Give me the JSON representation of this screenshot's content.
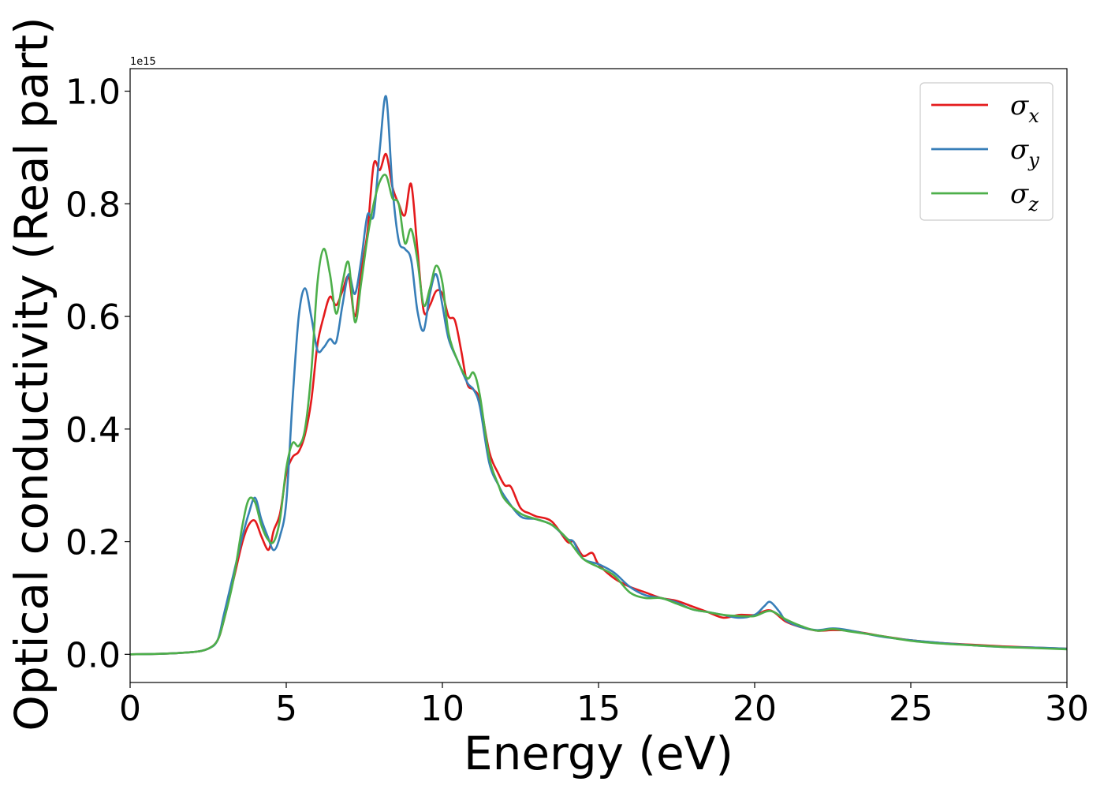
{
  "chart_data": {
    "type": "line",
    "title": "",
    "xlabel": "Energy (eV)",
    "ylabel": "Optical conductivity (Real part)",
    "y_offset_label": "1e15",
    "xlim": [
      0,
      30
    ],
    "ylim": [
      -0.05,
      1.04
    ],
    "x_ticks": [
      0,
      5,
      10,
      15,
      20,
      25,
      30
    ],
    "y_ticks": [
      0.0,
      0.2,
      0.4,
      0.6,
      0.8,
      1.0
    ],
    "x_tick_labels": [
      "0",
      "5",
      "10",
      "15",
      "20",
      "25",
      "30"
    ],
    "y_tick_labels": [
      "0.0",
      "0.2",
      "0.4",
      "0.6",
      "0.8",
      "1.0"
    ],
    "grid": false,
    "legend_position": "top-right",
    "series": [
      {
        "name": "σx",
        "symbol": "σ",
        "subscript": "x",
        "color": "#e41a1c",
        "points": [
          [
            0,
            0
          ],
          [
            1,
            0.001
          ],
          [
            2,
            0.004
          ],
          [
            2.5,
            0.01
          ],
          [
            2.8,
            0.025
          ],
          [
            3.0,
            0.06
          ],
          [
            3.3,
            0.13
          ],
          [
            3.6,
            0.2
          ],
          [
            3.8,
            0.23
          ],
          [
            4.0,
            0.237
          ],
          [
            4.2,
            0.21
          ],
          [
            4.4,
            0.186
          ],
          [
            4.5,
            0.195
          ],
          [
            4.6,
            0.22
          ],
          [
            4.8,
            0.25
          ],
          [
            5.0,
            0.32
          ],
          [
            5.2,
            0.35
          ],
          [
            5.4,
            0.36
          ],
          [
            5.6,
            0.39
          ],
          [
            5.8,
            0.45
          ],
          [
            6.0,
            0.55
          ],
          [
            6.2,
            0.6
          ],
          [
            6.4,
            0.635
          ],
          [
            6.6,
            0.62
          ],
          [
            6.8,
            0.645
          ],
          [
            7.0,
            0.67
          ],
          [
            7.2,
            0.6
          ],
          [
            7.4,
            0.68
          ],
          [
            7.6,
            0.75
          ],
          [
            7.8,
            0.87
          ],
          [
            8.0,
            0.86
          ],
          [
            8.2,
            0.888
          ],
          [
            8.4,
            0.83
          ],
          [
            8.6,
            0.8
          ],
          [
            8.8,
            0.78
          ],
          [
            9.0,
            0.835
          ],
          [
            9.2,
            0.72
          ],
          [
            9.4,
            0.61
          ],
          [
            9.6,
            0.62
          ],
          [
            9.8,
            0.645
          ],
          [
            10.0,
            0.64
          ],
          [
            10.2,
            0.6
          ],
          [
            10.4,
            0.593
          ],
          [
            10.6,
            0.54
          ],
          [
            10.8,
            0.48
          ],
          [
            11.0,
            0.47
          ],
          [
            11.2,
            0.45
          ],
          [
            11.5,
            0.36
          ],
          [
            11.8,
            0.32
          ],
          [
            12.0,
            0.3
          ],
          [
            12.2,
            0.297
          ],
          [
            12.5,
            0.26
          ],
          [
            12.8,
            0.25
          ],
          [
            13.0,
            0.245
          ],
          [
            13.5,
            0.236
          ],
          [
            14.0,
            0.2
          ],
          [
            14.2,
            0.2
          ],
          [
            14.5,
            0.175
          ],
          [
            14.8,
            0.18
          ],
          [
            15.0,
            0.16
          ],
          [
            15.5,
            0.135
          ],
          [
            16.0,
            0.12
          ],
          [
            16.5,
            0.11
          ],
          [
            17.0,
            0.1
          ],
          [
            17.5,
            0.095
          ],
          [
            18.0,
            0.085
          ],
          [
            18.5,
            0.075
          ],
          [
            19.0,
            0.065
          ],
          [
            19.5,
            0.07
          ],
          [
            20.0,
            0.07
          ],
          [
            20.5,
            0.078
          ],
          [
            21.0,
            0.058
          ],
          [
            21.5,
            0.048
          ],
          [
            22.0,
            0.042
          ],
          [
            22.5,
            0.043
          ],
          [
            23.0,
            0.042
          ],
          [
            23.5,
            0.038
          ],
          [
            24.0,
            0.033
          ],
          [
            25.0,
            0.025
          ],
          [
            26.0,
            0.02
          ],
          [
            27.0,
            0.017
          ],
          [
            28.0,
            0.014
          ],
          [
            29.0,
            0.012
          ],
          [
            30.0,
            0.01
          ]
        ]
      },
      {
        "name": "σy",
        "symbol": "σ",
        "subscript": "y",
        "color": "#377eb8",
        "points": [
          [
            0,
            0
          ],
          [
            1,
            0.001
          ],
          [
            2,
            0.004
          ],
          [
            2.5,
            0.01
          ],
          [
            2.8,
            0.025
          ],
          [
            3.0,
            0.07
          ],
          [
            3.3,
            0.14
          ],
          [
            3.6,
            0.21
          ],
          [
            3.8,
            0.25
          ],
          [
            4.0,
            0.278
          ],
          [
            4.2,
            0.24
          ],
          [
            4.4,
            0.21
          ],
          [
            4.6,
            0.185
          ],
          [
            4.8,
            0.21
          ],
          [
            5.0,
            0.27
          ],
          [
            5.2,
            0.45
          ],
          [
            5.4,
            0.6
          ],
          [
            5.6,
            0.65
          ],
          [
            5.8,
            0.6
          ],
          [
            6.0,
            0.54
          ],
          [
            6.2,
            0.545
          ],
          [
            6.4,
            0.56
          ],
          [
            6.6,
            0.555
          ],
          [
            6.8,
            0.62
          ],
          [
            7.0,
            0.675
          ],
          [
            7.2,
            0.64
          ],
          [
            7.4,
            0.7
          ],
          [
            7.6,
            0.78
          ],
          [
            7.8,
            0.78
          ],
          [
            8.0,
            0.9
          ],
          [
            8.2,
            0.99
          ],
          [
            8.4,
            0.83
          ],
          [
            8.6,
            0.735
          ],
          [
            8.8,
            0.72
          ],
          [
            9.0,
            0.7
          ],
          [
            9.2,
            0.61
          ],
          [
            9.4,
            0.575
          ],
          [
            9.6,
            0.64
          ],
          [
            9.8,
            0.675
          ],
          [
            10.0,
            0.62
          ],
          [
            10.2,
            0.56
          ],
          [
            10.5,
            0.52
          ],
          [
            10.8,
            0.482
          ],
          [
            11.0,
            0.47
          ],
          [
            11.2,
            0.44
          ],
          [
            11.5,
            0.34
          ],
          [
            11.8,
            0.3
          ],
          [
            12.0,
            0.28
          ],
          [
            12.5,
            0.245
          ],
          [
            13.0,
            0.24
          ],
          [
            13.5,
            0.23
          ],
          [
            14.0,
            0.205
          ],
          [
            14.2,
            0.2
          ],
          [
            14.5,
            0.17
          ],
          [
            15.0,
            0.16
          ],
          [
            15.5,
            0.145
          ],
          [
            16.0,
            0.12
          ],
          [
            16.5,
            0.105
          ],
          [
            17.0,
            0.1
          ],
          [
            17.5,
            0.092
          ],
          [
            18.0,
            0.08
          ],
          [
            18.5,
            0.075
          ],
          [
            19.0,
            0.07
          ],
          [
            19.5,
            0.065
          ],
          [
            20.0,
            0.07
          ],
          [
            20.3,
            0.085
          ],
          [
            20.5,
            0.093
          ],
          [
            20.8,
            0.075
          ],
          [
            21.0,
            0.06
          ],
          [
            21.5,
            0.048
          ],
          [
            22.0,
            0.043
          ],
          [
            22.5,
            0.046
          ],
          [
            23.0,
            0.043
          ],
          [
            24.0,
            0.032
          ],
          [
            25.0,
            0.025
          ],
          [
            26.0,
            0.02
          ],
          [
            27.0,
            0.016
          ],
          [
            28.0,
            0.013
          ],
          [
            29.0,
            0.012
          ],
          [
            30.0,
            0.01
          ]
        ]
      },
      {
        "name": "σz",
        "symbol": "σ",
        "subscript": "z",
        "color": "#4daf4a",
        "points": [
          [
            0,
            0
          ],
          [
            1,
            0.001
          ],
          [
            2,
            0.004
          ],
          [
            2.5,
            0.01
          ],
          [
            2.8,
            0.025
          ],
          [
            3.0,
            0.06
          ],
          [
            3.3,
            0.13
          ],
          [
            3.6,
            0.23
          ],
          [
            3.8,
            0.275
          ],
          [
            4.0,
            0.27
          ],
          [
            4.2,
            0.23
          ],
          [
            4.4,
            0.205
          ],
          [
            4.6,
            0.2
          ],
          [
            4.8,
            0.24
          ],
          [
            5.0,
            0.33
          ],
          [
            5.2,
            0.375
          ],
          [
            5.4,
            0.37
          ],
          [
            5.6,
            0.4
          ],
          [
            5.8,
            0.5
          ],
          [
            6.0,
            0.66
          ],
          [
            6.2,
            0.72
          ],
          [
            6.4,
            0.675
          ],
          [
            6.6,
            0.605
          ],
          [
            6.8,
            0.66
          ],
          [
            7.0,
            0.695
          ],
          [
            7.2,
            0.59
          ],
          [
            7.4,
            0.66
          ],
          [
            7.6,
            0.74
          ],
          [
            7.8,
            0.8
          ],
          [
            8.0,
            0.84
          ],
          [
            8.2,
            0.85
          ],
          [
            8.4,
            0.81
          ],
          [
            8.6,
            0.8
          ],
          [
            8.8,
            0.73
          ],
          [
            9.0,
            0.755
          ],
          [
            9.2,
            0.7
          ],
          [
            9.4,
            0.62
          ],
          [
            9.6,
            0.65
          ],
          [
            9.8,
            0.69
          ],
          [
            10.0,
            0.66
          ],
          [
            10.2,
            0.57
          ],
          [
            10.5,
            0.52
          ],
          [
            10.8,
            0.49
          ],
          [
            11.0,
            0.5
          ],
          [
            11.2,
            0.46
          ],
          [
            11.5,
            0.35
          ],
          [
            11.8,
            0.3
          ],
          [
            12.0,
            0.275
          ],
          [
            12.5,
            0.25
          ],
          [
            13.0,
            0.24
          ],
          [
            13.5,
            0.23
          ],
          [
            14.0,
            0.205
          ],
          [
            14.5,
            0.17
          ],
          [
            15.0,
            0.155
          ],
          [
            15.5,
            0.14
          ],
          [
            16.0,
            0.11
          ],
          [
            16.5,
            0.1
          ],
          [
            17.0,
            0.1
          ],
          [
            17.5,
            0.09
          ],
          [
            18.0,
            0.08
          ],
          [
            18.5,
            0.075
          ],
          [
            19.0,
            0.07
          ],
          [
            19.5,
            0.068
          ],
          [
            20.0,
            0.068
          ],
          [
            20.5,
            0.077
          ],
          [
            21.0,
            0.062
          ],
          [
            21.5,
            0.05
          ],
          [
            22.0,
            0.042
          ],
          [
            22.5,
            0.045
          ],
          [
            23.0,
            0.041
          ],
          [
            24.0,
            0.033
          ],
          [
            25.0,
            0.024
          ],
          [
            26.0,
            0.019
          ],
          [
            27.0,
            0.016
          ],
          [
            28.0,
            0.013
          ],
          [
            29.0,
            0.011
          ],
          [
            30.0,
            0.009
          ]
        ]
      }
    ]
  }
}
